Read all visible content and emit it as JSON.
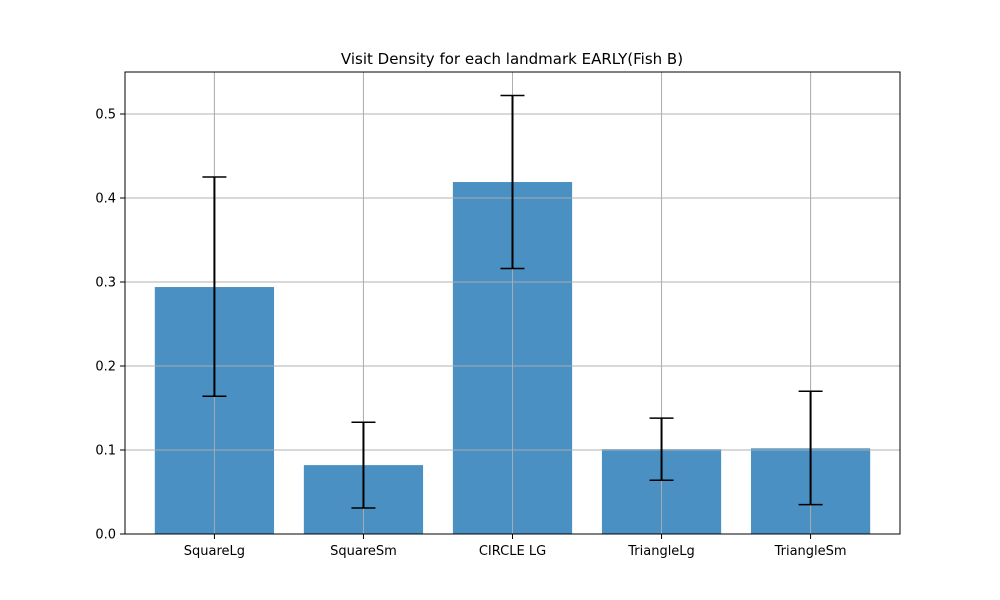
{
  "chart_data": {
    "type": "bar",
    "title": "Visit Density for each landmark EARLY(Fish B)",
    "xlabel": "",
    "ylabel": "",
    "categories": [
      "SquareLg",
      "SquareSm",
      "CIRCLE LG",
      "TriangleLg",
      "TriangleSm"
    ],
    "values": [
      0.294,
      0.082,
      0.419,
      0.101,
      0.102
    ],
    "error_low": [
      0.164,
      0.031,
      0.316,
      0.064,
      0.035
    ],
    "error_high": [
      0.425,
      0.133,
      0.522,
      0.138,
      0.17
    ],
    "ylim": [
      0.0,
      0.55
    ],
    "yticks": [
      "0.0",
      "0.1",
      "0.2",
      "0.3",
      "0.4",
      "0.5"
    ],
    "grid": true,
    "bar_color": "#4a90c2",
    "error_color": "#000000",
    "grid_color": "#b0b0b0"
  }
}
